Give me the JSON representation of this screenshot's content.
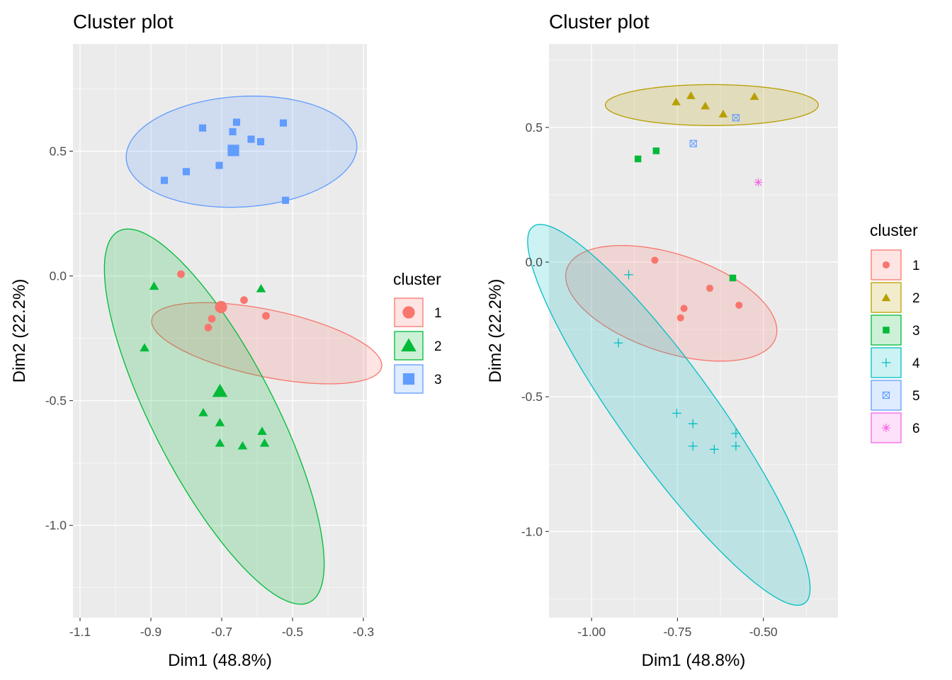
{
  "chart_data": [
    {
      "type": "scatter",
      "title": "Cluster plot",
      "xlabel": "Dim1 (48.8%)",
      "ylabel": "Dim2 (22.2%)",
      "xlim": [
        -1.12,
        -0.29
      ],
      "ylim": [
        -1.37,
        0.93
      ],
      "xticks": [
        -1.1,
        -0.9,
        -0.7,
        -0.5,
        -0.3
      ],
      "xtick_labels": [
        "-1.1",
        "-0.9",
        "-0.7",
        "-0.5",
        "-0.3"
      ],
      "yticks": [
        0.5,
        0.0,
        -0.5,
        -1.0
      ],
      "ytick_labels": [
        "0.5",
        "0.0",
        "-0.5",
        "-1.0"
      ],
      "grid": true,
      "legend": {
        "title": "cluster",
        "position": "right"
      },
      "series": [
        {
          "name": "1",
          "color": "#F8766D",
          "shape": "circle",
          "points": [
            [
              -0.815,
              0.007
            ],
            [
              -0.637,
              -0.097
            ],
            [
              -0.575,
              -0.16
            ],
            [
              -0.728,
              -0.172
            ],
            [
              -0.738,
              -0.207
            ]
          ],
          "center": [
            -0.702,
            -0.125
          ],
          "ellipse": {
            "cx": -0.573,
            "cy": -0.27,
            "rx": 0.339,
            "ry": 0.131,
            "angle_deg": -18
          }
        },
        {
          "name": "2",
          "color": "#00BA38",
          "shape": "triangle",
          "points": [
            [
              -0.891,
              -0.043
            ],
            [
              -0.589,
              -0.053
            ],
            [
              -0.918,
              -0.29
            ],
            [
              -0.752,
              -0.55
            ],
            [
              -0.705,
              -0.59
            ],
            [
              -0.586,
              -0.625
            ],
            [
              -0.705,
              -0.672
            ],
            [
              -0.641,
              -0.683
            ],
            [
              -0.579,
              -0.672
            ]
          ],
          "center": [
            -0.705,
            -0.465
          ],
          "ellipse": {
            "cx": -0.721,
            "cy": -0.564,
            "rx": 0.793,
            "ry": 0.182,
            "angle_deg": -71
          }
        },
        {
          "name": "3",
          "color": "#619CFF",
          "shape": "square",
          "points": [
            [
              -0.754,
              0.593
            ],
            [
              -0.658,
              0.616
            ],
            [
              -0.669,
              0.578
            ],
            [
              -0.617,
              0.548
            ],
            [
              -0.59,
              0.538
            ],
            [
              -0.526,
              0.613
            ],
            [
              -0.8,
              0.418
            ],
            [
              -0.707,
              0.443
            ],
            [
              -0.862,
              0.383
            ],
            [
              -0.52,
              0.303
            ]
          ],
          "center": [
            -0.667,
            0.503
          ],
          "ellipse": {
            "cx": -0.644,
            "cy": 0.498,
            "rx": 0.327,
            "ry": 0.221,
            "angle_deg": 7
          }
        }
      ]
    },
    {
      "type": "scatter",
      "title": "Cluster plot",
      "xlabel": "Dim1 (48.8%)",
      "ylabel": "Dim2 (22.2%)",
      "xlim": [
        -1.124,
        -0.283
      ],
      "ylim": [
        -1.32,
        0.81
      ],
      "xticks": [
        -1.0,
        -0.75,
        -0.5
      ],
      "xtick_labels": [
        "-1.00",
        "-0.75",
        "-0.50"
      ],
      "yticks": [
        0.5,
        0.0,
        -0.5,
        -1.0
      ],
      "ytick_labels": [
        "0.5",
        "0.0",
        "-0.5",
        "-1.0"
      ],
      "grid": true,
      "legend": {
        "title": "cluster",
        "position": "right"
      },
      "series": [
        {
          "name": "1",
          "color": "#F8766D",
          "shape": "circle",
          "points": [
            [
              -0.816,
              0.007
            ],
            [
              -0.656,
              -0.097
            ],
            [
              -0.571,
              -0.16
            ],
            [
              -0.731,
              -0.172
            ],
            [
              -0.741,
              -0.207
            ]
          ],
          "ellipse": {
            "cx": -0.768,
            "cy": -0.153,
            "rx": 0.331,
            "ry": 0.176,
            "angle_deg": -26
          }
        },
        {
          "name": "2",
          "color": "#B79F00",
          "shape": "triangle",
          "points": [
            [
              -0.754,
              0.593
            ],
            [
              -0.669,
              0.578
            ],
            [
              -0.711,
              0.616
            ],
            [
              -0.617,
              0.548
            ],
            [
              -0.526,
              0.613
            ]
          ],
          "ellipse": {
            "cx": -0.65,
            "cy": 0.583,
            "rx": 0.31,
            "ry": 0.076,
            "angle_deg": 0
          }
        },
        {
          "name": "3",
          "color": "#00BA38",
          "shape": "square",
          "points": [
            [
              -0.865,
              0.383
            ],
            [
              -0.812,
              0.413
            ],
            [
              -0.589,
              -0.059
            ]
          ]
        },
        {
          "name": "4",
          "color": "#00BFC4",
          "shape": "plus",
          "points": [
            [
              -0.892,
              -0.047
            ],
            [
              -0.922,
              -0.3
            ],
            [
              -0.752,
              -0.561
            ],
            [
              -0.705,
              -0.6
            ],
            [
              -0.705,
              -0.683
            ],
            [
              -0.643,
              -0.695
            ],
            [
              -0.58,
              -0.636
            ],
            [
              -0.58,
              -0.683
            ]
          ],
          "ellipse": {
            "cx": -0.775,
            "cy": -0.567,
            "rx": 0.804,
            "ry": 0.149,
            "angle_deg": -61
          }
        },
        {
          "name": "5",
          "color": "#619CFF",
          "shape": "square-x",
          "points": [
            [
              -0.704,
              0.44
            ],
            [
              -0.58,
              0.536
            ]
          ]
        },
        {
          "name": "6",
          "color": "#F564E3",
          "shape": "star",
          "points": [
            [
              -0.515,
              0.296
            ]
          ]
        }
      ]
    }
  ]
}
